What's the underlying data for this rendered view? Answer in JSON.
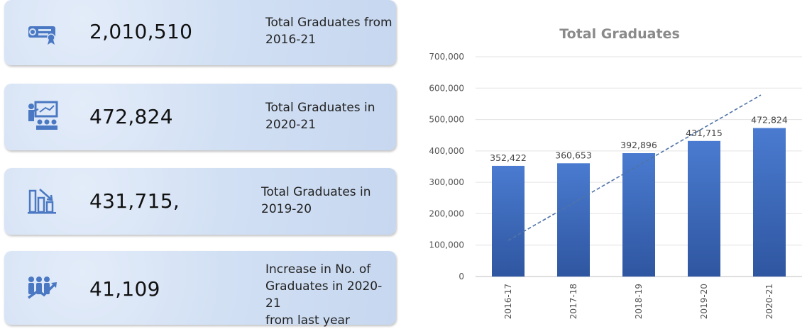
{
  "cards": [
    {
      "icon": "graduation-certificate-icon",
      "value": "2,010,510",
      "label_line1": "Total Graduates from",
      "label_line2": "2016-21",
      "label_line3": ""
    },
    {
      "icon": "presentation-board-icon",
      "value": "472,824",
      "label_line1": "Total Graduates in",
      "label_line2": "2020-21",
      "label_line3": ""
    },
    {
      "icon": "bar-chart-icon",
      "value": "431,715,",
      "label_line1": "Total Graduates in",
      "label_line2": "2019-20",
      "label_line3": ""
    },
    {
      "icon": "people-growth-icon",
      "value": "41,109",
      "label_line1": "Increase in No. of",
      "label_line2": "Graduates in 2020-21",
      "label_line3": "from last year"
    }
  ],
  "colors": {
    "bar": "#4472c4",
    "bar_dark": "#2f56a0",
    "trendline": "#4f73a8",
    "card": "#d2e0f4",
    "icon": "#4a78c2"
  },
  "chart_data": {
    "type": "bar",
    "title": "Total Graduates",
    "categories": [
      "2016-17",
      "2017-18",
      "2018-19",
      "2019-20",
      "2020-21"
    ],
    "values": [
      352422,
      360653,
      392896,
      431715,
      472824
    ],
    "value_labels": [
      "352,422",
      "360,653",
      "392,896",
      "431,715",
      "472,824"
    ],
    "ylim": [
      0,
      700000
    ],
    "yticks": [
      0,
      100000,
      200000,
      300000,
      400000,
      500000,
      600000,
      700000
    ],
    "ytick_labels": [
      "0",
      "100,000",
      "200,000",
      "300,000",
      "400,000",
      "500,000",
      "600,000",
      "700,000"
    ],
    "trendline": {
      "type": "linear",
      "style": "dashed",
      "start": 115000,
      "end": 578000
    },
    "grid": true,
    "legend": "none"
  }
}
